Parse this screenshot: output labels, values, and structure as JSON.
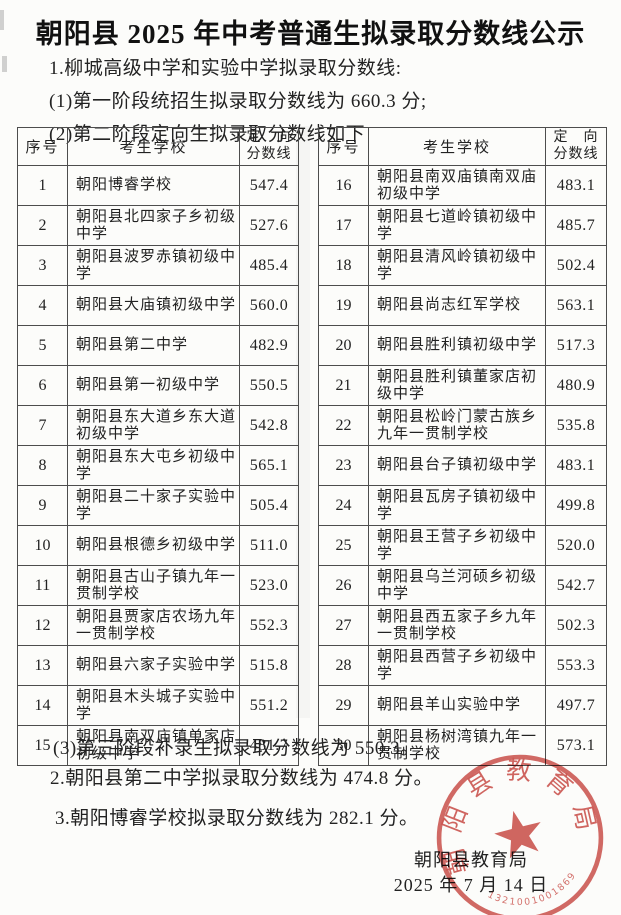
{
  "title": "朝阳县 2025 年中考普通生拟录取分数线公示",
  "intro": {
    "line1": "1.柳城高级中学和实验中学拟录取分数线:",
    "line2": "(1)第一阶段统招生拟录取分数线为 660.3 分;",
    "line3": "(2)第二阶段定向生拟录取分数线如下"
  },
  "table": {
    "headers": {
      "index": "序号",
      "school": "考生学校",
      "score_top": "定　向",
      "score_bottom": "分数线"
    },
    "left_rows": [
      {
        "no": "1",
        "school": "朝阳博睿学校",
        "score": "547.4"
      },
      {
        "no": "2",
        "school": "朝阳县北四家子乡初级中学",
        "score": "527.6"
      },
      {
        "no": "3",
        "school": "朝阳县波罗赤镇初级中学",
        "score": "485.4"
      },
      {
        "no": "4",
        "school": "朝阳县大庙镇初级中学",
        "score": "560.0"
      },
      {
        "no": "5",
        "school": "朝阳县第二中学",
        "score": "482.9"
      },
      {
        "no": "6",
        "school": "朝阳县第一初级中学",
        "score": "550.5"
      },
      {
        "no": "7",
        "school": "朝阳县东大道乡东大道初级中学",
        "score": "542.8"
      },
      {
        "no": "8",
        "school": "朝阳县东大屯乡初级中学",
        "score": "565.1"
      },
      {
        "no": "9",
        "school": "朝阳县二十家子实验中学",
        "score": "505.4"
      },
      {
        "no": "10",
        "school": "朝阳县根德乡初级中学",
        "score": "511.0"
      },
      {
        "no": "11",
        "school": "朝阳县古山子镇九年一贯制学校",
        "score": "523.0"
      },
      {
        "no": "12",
        "school": "朝阳县贾家店农场九年一贯制学校",
        "score": "552.3"
      },
      {
        "no": "13",
        "school": "朝阳县六家子实验中学",
        "score": "515.8"
      },
      {
        "no": "14",
        "school": "朝阳县木头城子实验中学",
        "score": "551.2"
      },
      {
        "no": "15",
        "school": "朝阳县南双庙镇单家店初级中学",
        "score": "481.7"
      }
    ],
    "right_rows": [
      {
        "no": "16",
        "school": "朝阳县南双庙镇南双庙初级中学",
        "score": "483.1"
      },
      {
        "no": "17",
        "school": "朝阳县七道岭镇初级中学",
        "score": "485.7"
      },
      {
        "no": "18",
        "school": "朝阳县清风岭镇初级中学",
        "score": "502.4"
      },
      {
        "no": "19",
        "school": "朝阳县尚志红军学校",
        "score": "563.1"
      },
      {
        "no": "20",
        "school": "朝阳县胜利镇初级中学",
        "score": "517.3"
      },
      {
        "no": "21",
        "school": "朝阳县胜利镇董家店初级中学",
        "score": "480.9"
      },
      {
        "no": "22",
        "school": "朝阳县松岭门蒙古族乡九年一贯制学校",
        "score": "535.8"
      },
      {
        "no": "23",
        "school": "朝阳县台子镇初级中学",
        "score": "483.1"
      },
      {
        "no": "24",
        "school": "朝阳县瓦房子镇初级中学",
        "score": "499.8"
      },
      {
        "no": "25",
        "school": "朝阳县王营子乡初级中学",
        "score": "520.0"
      },
      {
        "no": "26",
        "school": "朝阳县乌兰河硕乡初级中学",
        "score": "542.7"
      },
      {
        "no": "27",
        "school": "朝阳县西五家子乡九年一贯制学校",
        "score": "502.3"
      },
      {
        "no": "28",
        "school": "朝阳县西营子乡初级中学",
        "score": "553.3"
      },
      {
        "no": "29",
        "school": "朝阳县羊山实验中学",
        "score": "497.7"
      },
      {
        "no": "30",
        "school": "朝阳县杨树湾镇九年一贯制学校",
        "score": "573.1"
      }
    ]
  },
  "footer": {
    "line1": "(3)第三阶段补录生拟录取分数线为 550.3。",
    "line2": "2.朝阳县第二中学拟录取分数线为 474.8 分。",
    "line3": "3.朝阳博睿学校拟录取分数线为 282.1 分。"
  },
  "signature": {
    "org": "朝阳县教育局",
    "date": "2025 年 7 月 14 日"
  },
  "stamp": {
    "org": "朝阳县教育局",
    "number": "1321001001869",
    "color": "#c8423d"
  }
}
